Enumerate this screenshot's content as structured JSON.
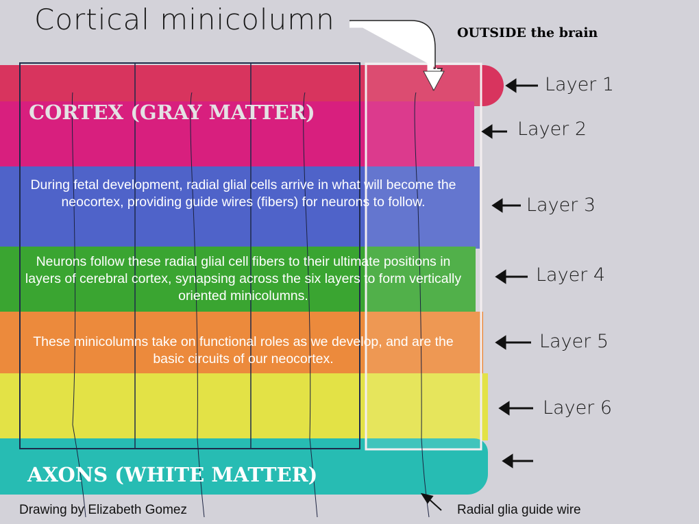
{
  "title": "Cortical minicolumn",
  "outside_label": "OUTSIDE the brain",
  "cortex_label": "CORTEX (GRAY MATTER)",
  "axons_label": "AXONS (WHITE MATTER)",
  "paragraphs": [
    "During fetal development, radial glial cells arrive in what will become the neocortex, providing guide wires (fibers) for neurons to follow.",
    "Neurons follow these radial glial cell fibers to their ultimate positions in layers of cerebral cortex, synapsing across the six layers to form vertically oriented minicolumns.",
    "These minicolumns take on functional roles as we develop, and are the basic circuits of our neocortex."
  ],
  "layers": [
    {
      "label": "Layer 1",
      "color": "#d8345e"
    },
    {
      "label": "Layer 2",
      "color": "#d81f7e"
    },
    {
      "label": "Layer 3",
      "color": "#4f63c9"
    },
    {
      "label": "Layer 4",
      "color": "#3aa531"
    },
    {
      "label": "Layer 5",
      "color": "#ec8a3c"
    },
    {
      "label": "Layer 6",
      "color": "#e3e246"
    },
    {
      "label": "",
      "color": "#27bcb3"
    }
  ],
  "credit": "Drawing by Elizabeth Gomez",
  "wire_label": "Radial glia guide wire"
}
